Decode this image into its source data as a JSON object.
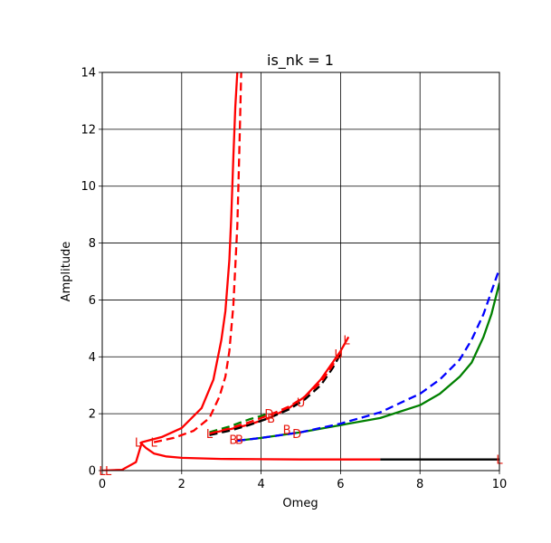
{
  "chart_data": {
    "type": "line",
    "title": "is_nk = 1",
    "xlabel": "Omeg",
    "ylabel": "Amplitude",
    "xlim": [
      0,
      10
    ],
    "ylim": [
      0,
      14
    ],
    "xticks": [
      0,
      2,
      4,
      6,
      8,
      10
    ],
    "yticks": [
      0,
      2,
      4,
      6,
      8,
      10,
      12,
      14
    ],
    "xtick_labels": [
      "0",
      "2",
      "4",
      "6",
      "8",
      "10"
    ],
    "ytick_labels": [
      "0",
      "2",
      "4",
      "6",
      "8",
      "10",
      "12",
      "14"
    ],
    "grid": true,
    "legend": "none",
    "series": [
      {
        "color": "#ff0000",
        "style": "solid",
        "x": [
          0.0,
          0.5,
          0.85,
          1.0,
          1.5,
          2.0,
          2.5,
          2.8,
          3.0,
          3.1,
          3.2,
          3.25,
          3.3,
          3.35,
          3.4
        ],
        "y": [
          0.0,
          0.03,
          0.3,
          1.0,
          1.18,
          1.5,
          2.2,
          3.2,
          4.6,
          5.6,
          7.4,
          9.0,
          11.0,
          12.8,
          14.0
        ]
      },
      {
        "color": "#ff0000",
        "style": "dashed",
        "x": [
          1.3,
          1.8,
          2.3,
          2.7,
          2.95,
          3.1,
          3.2,
          3.3,
          3.4,
          3.45,
          3.5
        ],
        "y": [
          1.0,
          1.15,
          1.4,
          1.85,
          2.6,
          3.3,
          4.2,
          5.8,
          8.6,
          11.2,
          14.0
        ]
      },
      {
        "color": "#ff0000",
        "style": "solid",
        "x": [
          0.95,
          1.1,
          1.3,
          1.6,
          2.0,
          3.0,
          4.0,
          5.0,
          6.0,
          7.0
        ],
        "y": [
          1.0,
          0.8,
          0.6,
          0.5,
          0.45,
          0.41,
          0.4,
          0.39,
          0.39,
          0.39
        ]
      },
      {
        "color": "#000000",
        "style": "solid",
        "x": [
          7.0,
          8.0,
          9.0,
          10.0
        ],
        "y": [
          0.39,
          0.39,
          0.39,
          0.39
        ]
      },
      {
        "color": "#ff0000",
        "style": "solid",
        "x": [
          2.7,
          3.2,
          3.7,
          4.2,
          4.7,
          5.1,
          5.5,
          5.8,
          6.0,
          6.2
        ],
        "y": [
          1.3,
          1.45,
          1.62,
          1.85,
          2.2,
          2.6,
          3.2,
          3.8,
          4.2,
          4.7
        ]
      },
      {
        "color": "#000000",
        "style": "dashed",
        "x": [
          2.7,
          3.2,
          3.7,
          4.2,
          4.7,
          5.1,
          5.5,
          5.8,
          6.0
        ],
        "y": [
          1.25,
          1.4,
          1.6,
          1.85,
          2.15,
          2.5,
          3.0,
          3.6,
          4.1
        ]
      },
      {
        "color": "#008000",
        "style": "dashed",
        "x": [
          2.7,
          3.2,
          3.7,
          4.2
        ],
        "y": [
          1.35,
          1.55,
          1.8,
          2.0
        ]
      },
      {
        "color": "#ff0000",
        "style": "dashed",
        "x": [
          2.7,
          3.2,
          3.7,
          4.2,
          4.7,
          5.1,
          5.5,
          5.8,
          6.0
        ],
        "y": [
          1.3,
          1.48,
          1.7,
          1.95,
          2.25,
          2.6,
          3.1,
          3.7,
          4.2
        ]
      },
      {
        "color": "#008000",
        "style": "solid",
        "x": [
          3.4,
          4.0,
          5.0,
          6.0,
          7.0,
          8.0,
          8.5,
          9.0,
          9.3,
          9.6,
          9.8,
          10.0
        ],
        "y": [
          1.05,
          1.15,
          1.35,
          1.6,
          1.85,
          2.3,
          2.7,
          3.3,
          3.8,
          4.7,
          5.5,
          6.6
        ]
      },
      {
        "color": "#0000ff",
        "style": "dashed",
        "x": [
          3.4,
          4.0,
          5.0,
          6.0,
          7.0,
          8.0,
          8.5,
          9.0,
          9.3,
          9.6,
          9.8,
          10.0
        ],
        "y": [
          1.05,
          1.15,
          1.35,
          1.65,
          2.05,
          2.7,
          3.2,
          3.9,
          4.6,
          5.5,
          6.3,
          7.1
        ]
      }
    ],
    "annotations": [
      {
        "text": "L",
        "x": 0.0,
        "y": 0.0
      },
      {
        "text": "L",
        "x": 0.15,
        "y": 0.0
      },
      {
        "text": "L",
        "x": 0.9,
        "y": 1.0
      },
      {
        "text": "L",
        "x": 1.3,
        "y": 1.0
      },
      {
        "text": "L",
        "x": 2.7,
        "y": 1.3
      },
      {
        "text": "B",
        "x": 3.3,
        "y": 1.1
      },
      {
        "text": "B",
        "x": 3.45,
        "y": 1.1
      },
      {
        "text": "D",
        "x": 4.2,
        "y": 2.0
      },
      {
        "text": "B",
        "x": 4.25,
        "y": 1.85
      },
      {
        "text": "B",
        "x": 4.65,
        "y": 1.45
      },
      {
        "text": "D",
        "x": 4.9,
        "y": 1.3
      },
      {
        "text": "U",
        "x": 5.0,
        "y": 2.4
      },
      {
        "text": "U",
        "x": 5.95,
        "y": 4.1
      },
      {
        "text": "L",
        "x": 6.15,
        "y": 4.6
      },
      {
        "text": "L",
        "x": 10.0,
        "y": 0.39
      }
    ]
  }
}
